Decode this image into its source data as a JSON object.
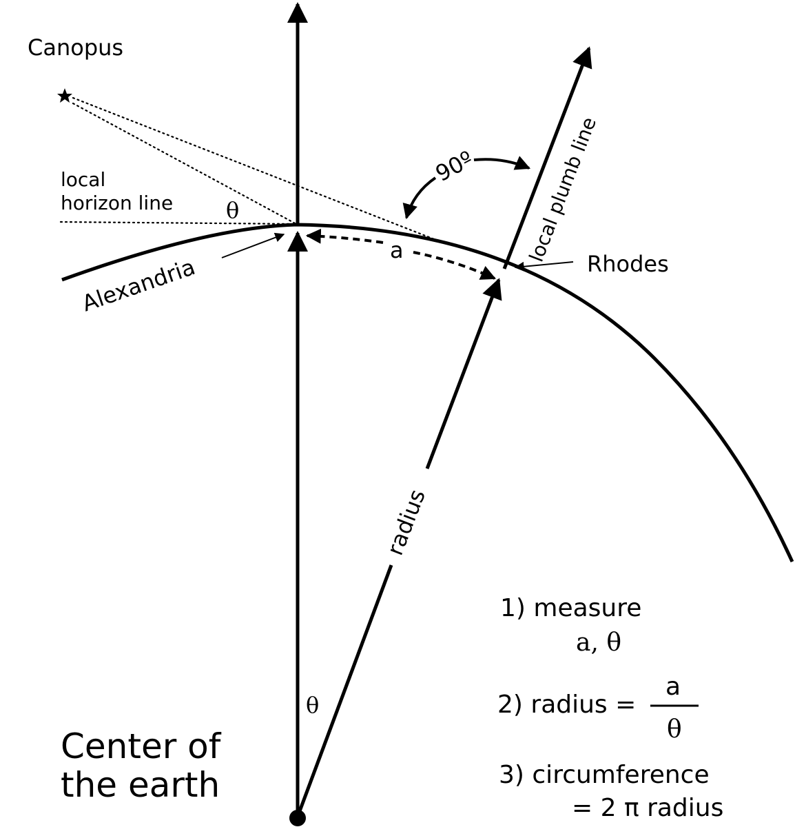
{
  "labels": {
    "canopus": "Canopus",
    "local_horizon_1": "local",
    "local_horizon_2": "horizon line",
    "theta_top": "θ",
    "angle_90": "90º",
    "local_plumb_line": "local plumb line",
    "a_arc": "a",
    "alexandria": "Alexandria",
    "rhodes": "Rhodes",
    "radius": "radius",
    "theta_center": "θ",
    "center_1": "Center of",
    "center_2": "the earth"
  },
  "steps": {
    "step1_line1": "1) measure",
    "step1_line2": "a, θ",
    "step2_prefix": "2) radius =",
    "step2_numerator": "a",
    "step2_denominator": "θ",
    "step3_line1": "3) circumference",
    "step3_line2": "= 2 π radius"
  },
  "colors": {
    "ink": "#000000",
    "background": "#ffffff"
  },
  "icons": {
    "star": "star-icon",
    "center_point": "center-dot-icon"
  }
}
